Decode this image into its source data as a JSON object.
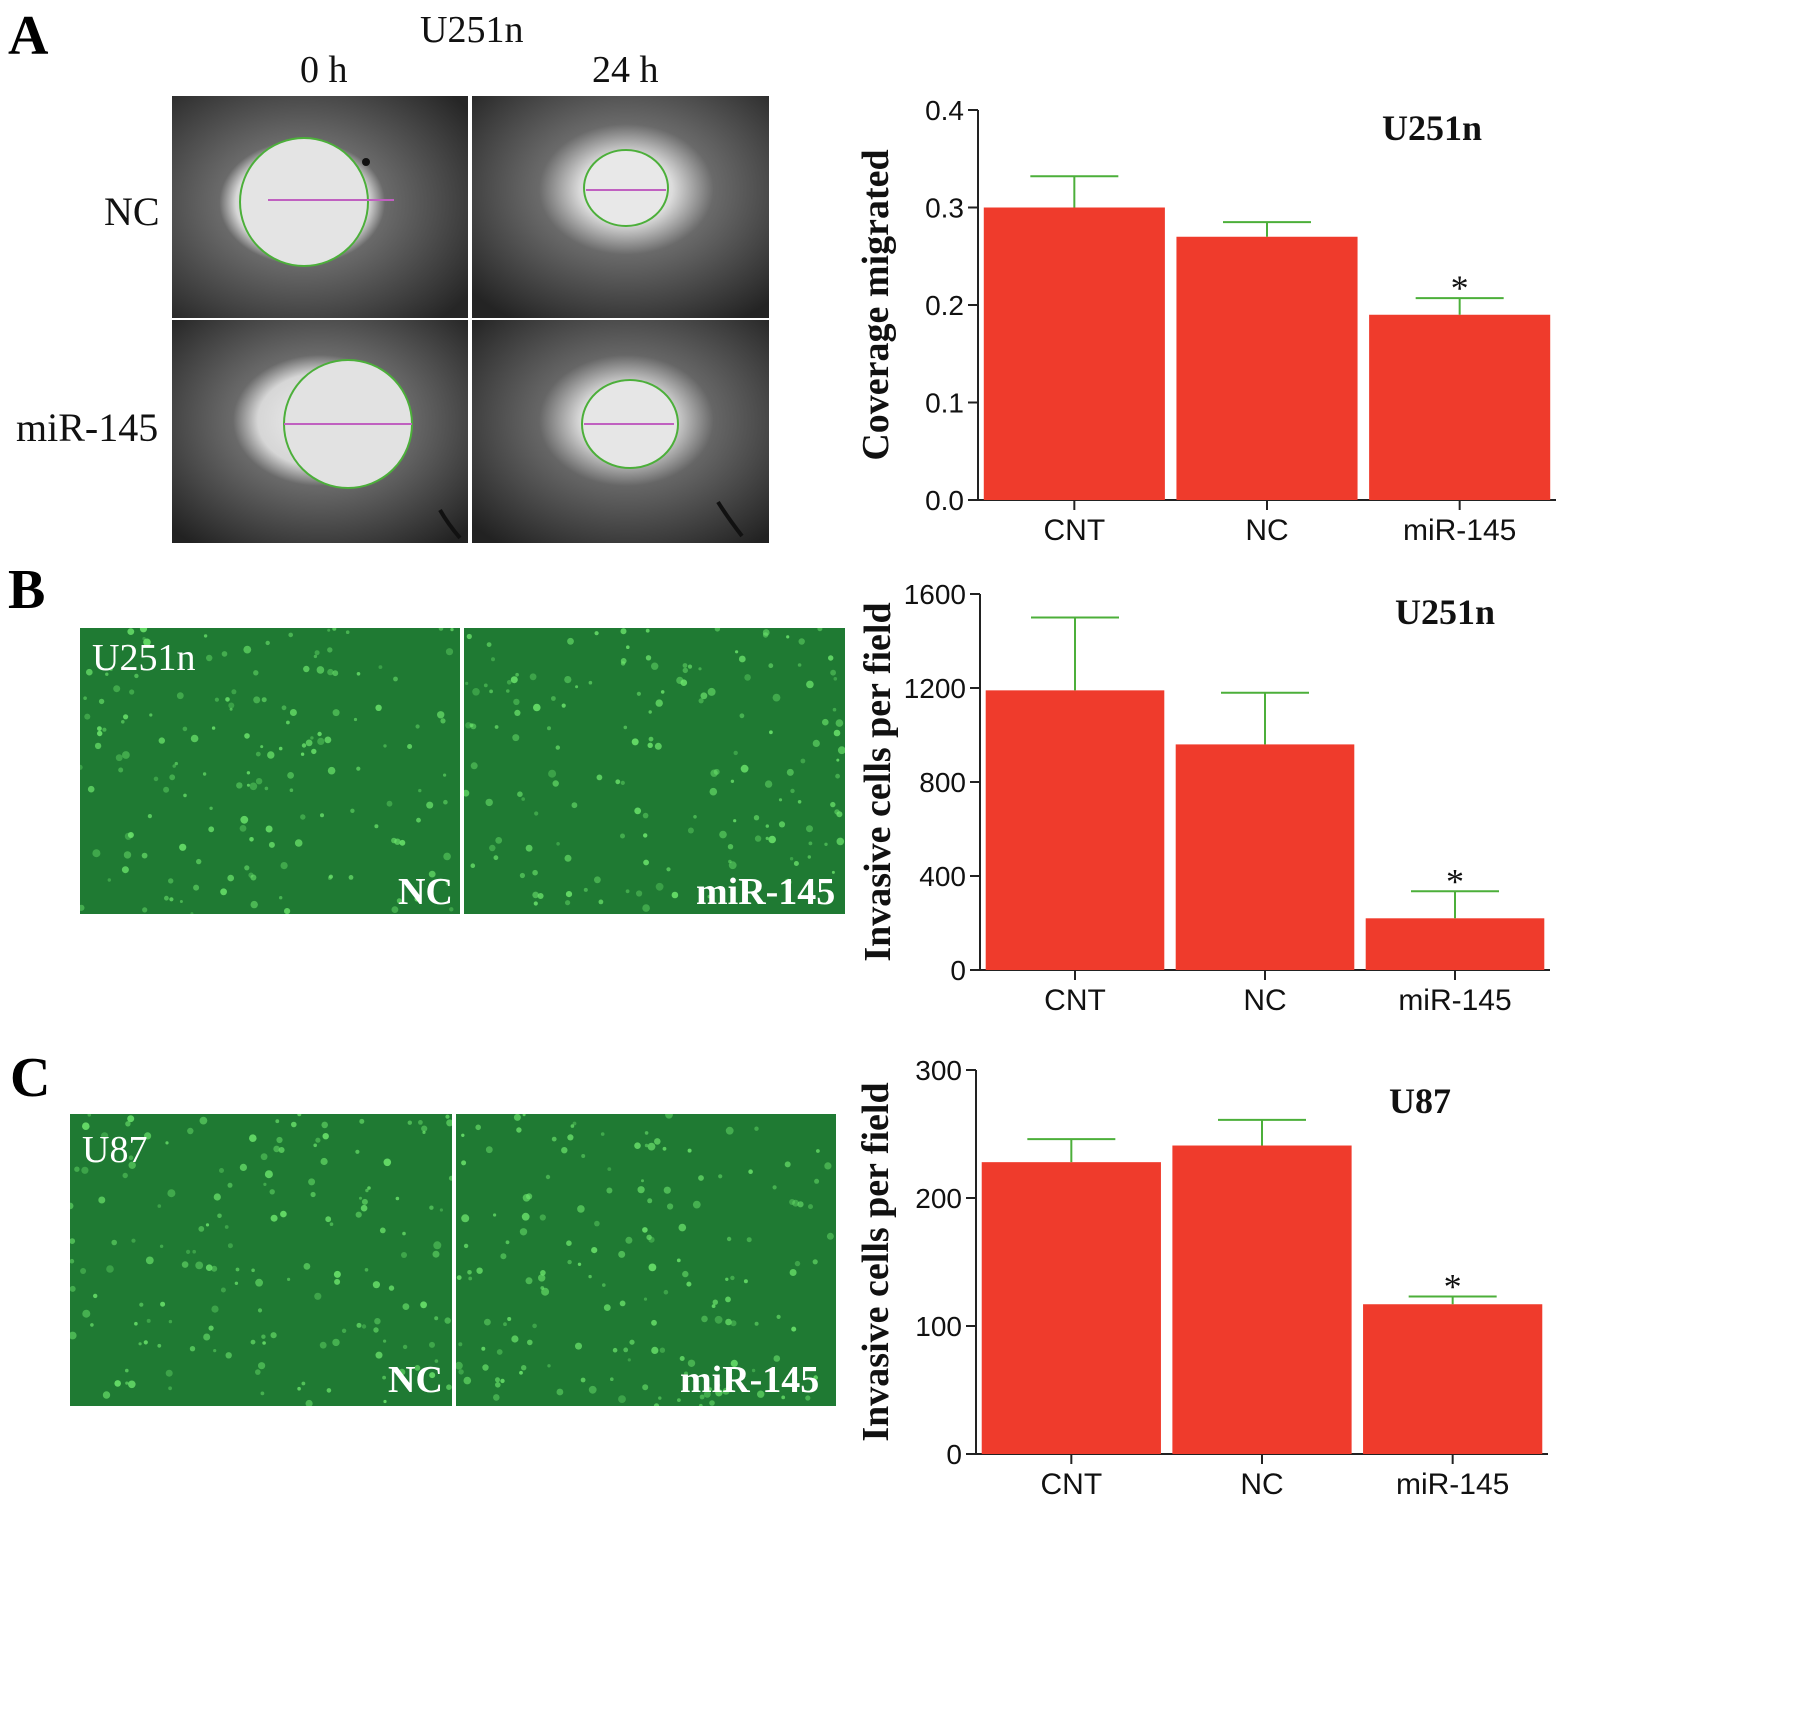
{
  "panels": {
    "a": {
      "letter": "A",
      "cell_line": "U251n",
      "time_labels": [
        "0 h",
        "24 h"
      ],
      "row_labels": [
        "NC",
        "miR-145"
      ]
    },
    "b": {
      "letter": "B",
      "overlay_cell_line": "U251n",
      "overlay_labels": [
        "NC",
        "miR-145"
      ]
    },
    "c": {
      "letter": "C",
      "overlay_cell_line": "U87",
      "overlay_labels": [
        "NC",
        "miR-145"
      ]
    }
  },
  "colors": {
    "bar": "#ef3b2c",
    "error_bar": "#4caf3a",
    "scratch_dark": "#3a3a3a",
    "scratch_light": "#e8e8e8",
    "fluor_bg": "#1f7a33",
    "fluor_cell": "#6ee86e"
  },
  "chart_data": [
    {
      "type": "bar",
      "title": "U251n",
      "xlabel": "",
      "ylabel": "Coverage migrated",
      "categories": [
        "CNT",
        "NC",
        "miR-145"
      ],
      "values": [
        0.3,
        0.27,
        0.19
      ],
      "errors": [
        0.032,
        0.015,
        0.017
      ],
      "significance": [
        "",
        "",
        "*"
      ],
      "ylim": [
        0,
        0.4
      ],
      "yticks": [
        0.0,
        0.1,
        0.2,
        0.3,
        0.4
      ],
      "ytick_labels": [
        "0.0",
        "0.1",
        "0.2",
        "0.3",
        "0.4"
      ]
    },
    {
      "type": "bar",
      "title": "U251n",
      "xlabel": "",
      "ylabel": "Invasive cells per field",
      "categories": [
        "CNT",
        "NC",
        "miR-145"
      ],
      "values": [
        1190,
        960,
        220
      ],
      "errors": [
        310,
        220,
        115
      ],
      "significance": [
        "",
        "",
        "*"
      ],
      "ylim": [
        0,
        1600
      ],
      "yticks": [
        0,
        400,
        800,
        1200,
        1600
      ],
      "ytick_labels": [
        "0",
        "400",
        "800",
        "1200",
        "1600"
      ]
    },
    {
      "type": "bar",
      "title": "U87",
      "xlabel": "",
      "ylabel": "Invasive cells per field",
      "categories": [
        "CNT",
        "NC",
        "miR-145"
      ],
      "values": [
        228,
        241,
        117
      ],
      "errors": [
        18,
        20,
        6
      ],
      "significance": [
        "",
        "",
        "*"
      ],
      "ylim": [
        0,
        300
      ],
      "yticks": [
        0,
        100,
        200,
        300
      ],
      "ytick_labels": [
        "0",
        "100",
        "200",
        "300"
      ]
    }
  ]
}
